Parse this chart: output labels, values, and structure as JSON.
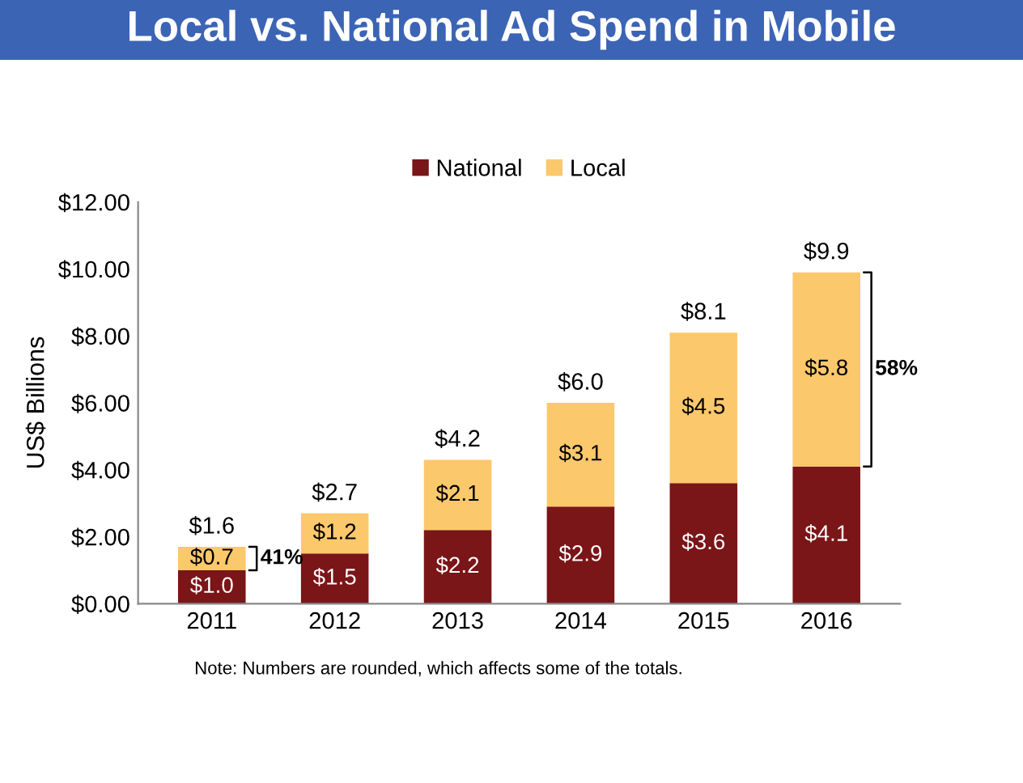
{
  "chart_data": {
    "type": "bar",
    "title": "Local vs. National Ad Spend in Mobile",
    "ylabel": "US$ Billions",
    "categories": [
      "2011",
      "2012",
      "2013",
      "2014",
      "2015",
      "2016"
    ],
    "stacked": true,
    "series": [
      {
        "name": "National",
        "color": "#7a1518",
        "values": [
          1.0,
          1.5,
          2.2,
          2.9,
          3.6,
          4.1
        ],
        "value_labels": [
          "$1.0",
          "$1.5",
          "$2.2",
          "$2.9",
          "$3.6",
          "$4.1"
        ]
      },
      {
        "name": "Local",
        "color": "#fcc86c",
        "values": [
          0.7,
          1.2,
          2.1,
          3.1,
          4.5,
          5.8
        ],
        "value_labels": [
          "$0.7",
          "$1.2",
          "$2.1",
          "$3.1",
          "$4.5",
          "$5.8"
        ]
      }
    ],
    "totals": [
      "$1.6",
      "$2.7",
      "$4.2",
      "$6.0",
      "$8.1",
      "$9.9"
    ],
    "ylim": [
      0,
      12
    ],
    "yticks": [
      {
        "value": 0,
        "label": "$0.00"
      },
      {
        "value": 2,
        "label": "$2.00"
      },
      {
        "value": 4,
        "label": "$4.00"
      },
      {
        "value": 6,
        "label": "$6.00"
      },
      {
        "value": 8,
        "label": "$8.00"
      },
      {
        "value": 10,
        "label": "$10.00"
      },
      {
        "value": 12,
        "label": "$12.00"
      }
    ],
    "legend": "top",
    "annotations": [
      "41%",
      "58%",
      "Note: Numbers are rounded, which affects some of the totals."
    ]
  }
}
